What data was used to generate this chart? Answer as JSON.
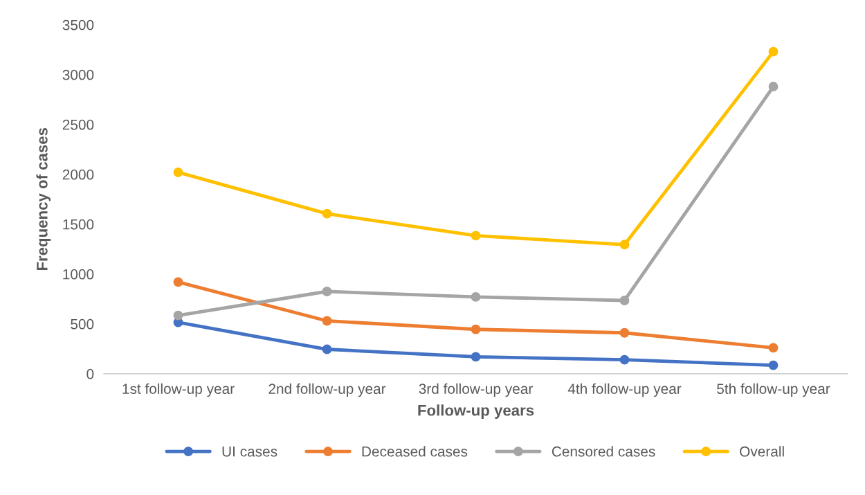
{
  "chart_data": {
    "type": "line",
    "xlabel": "Follow-up years",
    "ylabel": "Frequency of cases",
    "categories": [
      "1st follow-up year",
      "2nd follow-up year",
      "3rd follow-up year",
      "4th follow-up year",
      "5th follow-up year"
    ],
    "series": [
      {
        "name": "UI cases",
        "color": "#4472c4",
        "values": [
          515,
          245,
          170,
          140,
          85
        ]
      },
      {
        "name": "Deceased cases",
        "color": "#ed7d31",
        "values": [
          920,
          530,
          445,
          410,
          260
        ]
      },
      {
        "name": "Censored cases",
        "color": "#a5a5a5",
        "values": [
          585,
          825,
          770,
          735,
          2880
        ]
      },
      {
        "name": "Overall",
        "color": "#ffc000",
        "values": [
          2020,
          1605,
          1385,
          1295,
          3230
        ]
      }
    ],
    "ylim": [
      0,
      3500
    ],
    "yticks": [
      0,
      500,
      1000,
      1500,
      2000,
      2500,
      3000,
      3500
    ],
    "grid": false,
    "legend": "bottom",
    "marker": "circle",
    "line_style": "solid"
  }
}
